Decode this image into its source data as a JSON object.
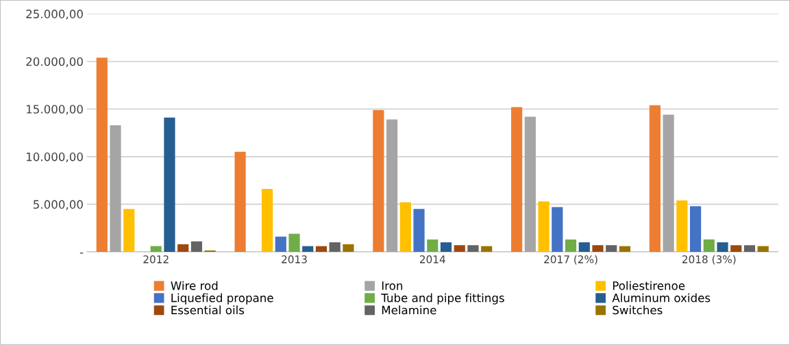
{
  "chart_data": {
    "type": "bar",
    "categories": [
      "2012",
      "2013",
      "2014",
      "2017 (2%)",
      "2018 (3%)"
    ],
    "series": [
      {
        "name": "Wire rod",
        "color": "#ed7d31",
        "values": [
          20400,
          10500,
          14900,
          15200,
          15400
        ]
      },
      {
        "name": "Iron",
        "color": "#a5a5a5",
        "values": [
          13300,
          null,
          13900,
          14200,
          14400
        ]
      },
      {
        "name": "Poliestirenoe",
        "color": "#ffc000",
        "values": [
          4500,
          6600,
          5200,
          5300,
          5400
        ]
      },
      {
        "name": "Liquefied propane",
        "color": "#4472c4",
        "values": [
          null,
          1600,
          4500,
          4700,
          4800
        ]
      },
      {
        "name": "Tube and pipe fittings",
        "color": "#70ad47",
        "values": [
          600,
          1900,
          1300,
          1300,
          1300
        ]
      },
      {
        "name": "Aluminum oxides",
        "color": "#255e91",
        "values": [
          14100,
          600,
          1000,
          1000,
          1000
        ]
      },
      {
        "name": "Essential oils",
        "color": "#9e480e",
        "values": [
          800,
          600,
          700,
          700,
          700
        ]
      },
      {
        "name": "Melamine",
        "color": "#636363",
        "values": [
          1100,
          1000,
          700,
          700,
          700
        ]
      },
      {
        "name": "Switches",
        "color": "#997300",
        "values": [
          150,
          800,
          600,
          600,
          600
        ]
      }
    ],
    "ylim": [
      0,
      25000
    ],
    "yticks": [
      {
        "value": 0,
        "label": "-"
      },
      {
        "value": 5000,
        "label": "5.000,00"
      },
      {
        "value": 10000,
        "label": "10.000,00"
      },
      {
        "value": 15000,
        "label": "15.000,00"
      },
      {
        "value": 20000,
        "label": "20.000,00"
      },
      {
        "value": 25000,
        "label": "25.000,00"
      }
    ],
    "grid": "y",
    "legend": "bottom"
  }
}
